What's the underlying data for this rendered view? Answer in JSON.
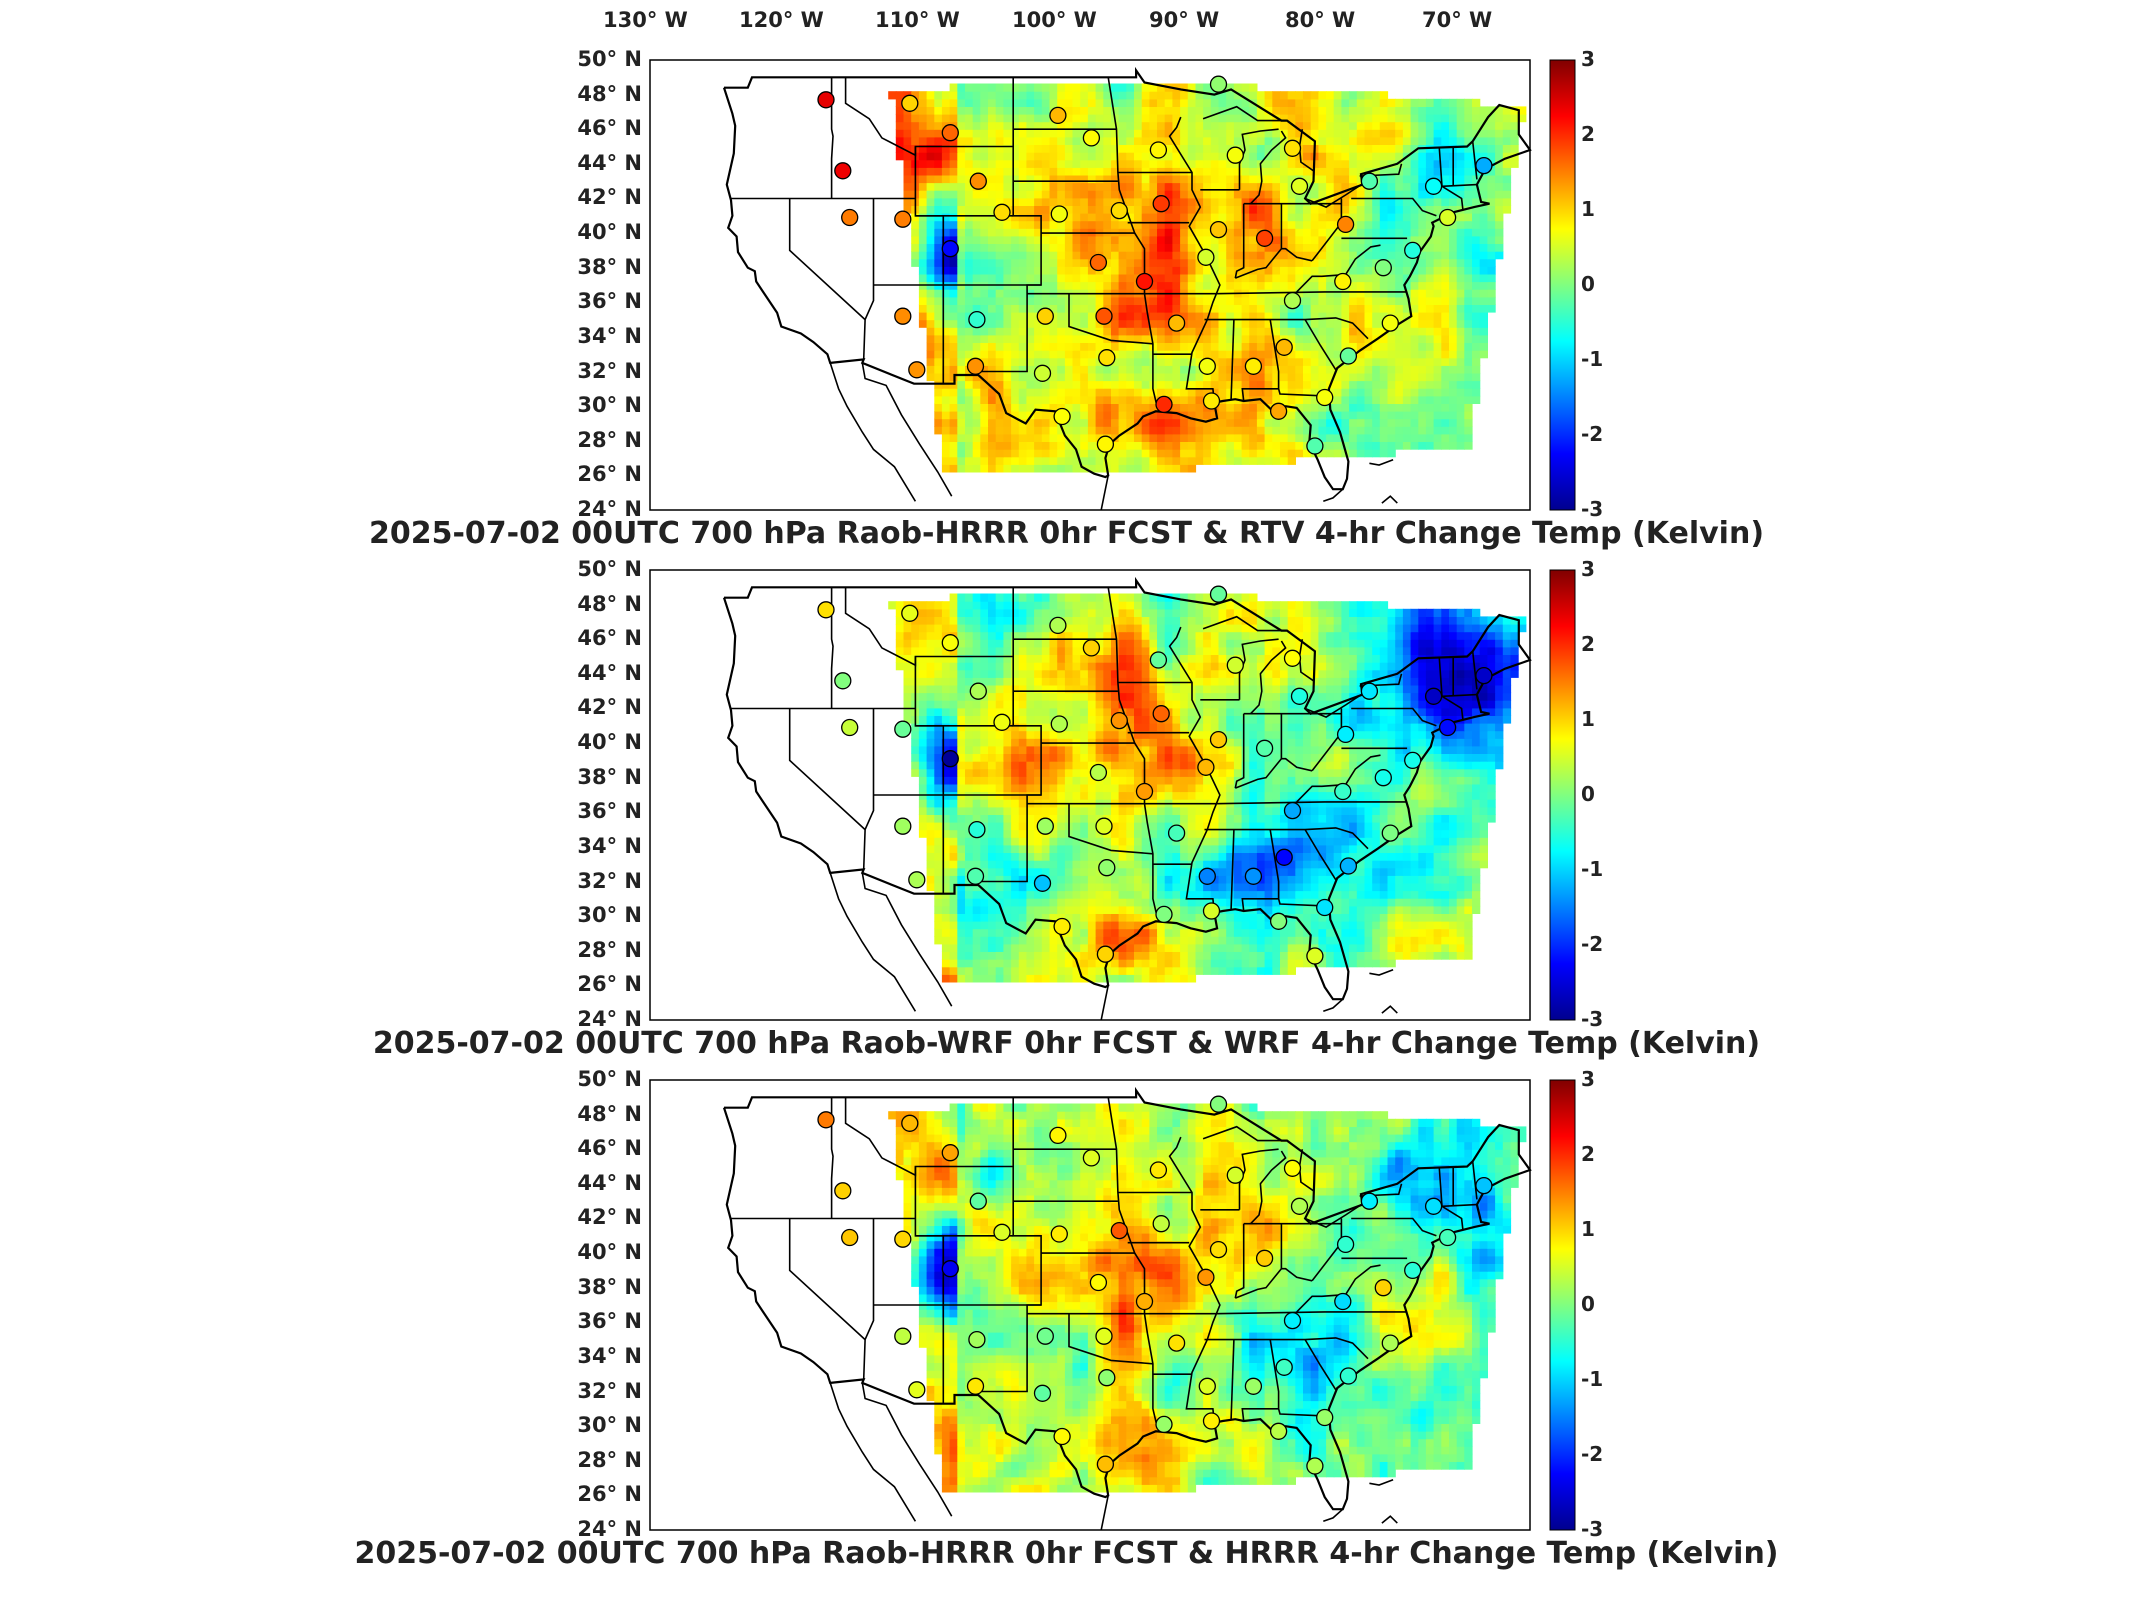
{
  "figure": {
    "lon_labels": [
      "130° W",
      "120° W",
      "110° W",
      "100° W",
      "90° W",
      "80° W",
      "70° W"
    ],
    "lat_labels": [
      "50° N",
      "48° N",
      "46° N",
      "44° N",
      "42° N",
      "40° N",
      "38° N",
      "36° N",
      "34° N",
      "32° N",
      "30° N",
      "28° N",
      "26° N",
      "24° N"
    ],
    "colorbar_ticks": [
      "3",
      "2",
      "1",
      "0",
      "-1",
      "-2",
      "-3"
    ],
    "colors": {
      "scale": [
        "#00008f",
        "#0000ff",
        "#0080ff",
        "#00ffff",
        "#80ff80",
        "#ffff00",
        "#ff8000",
        "#ff0000",
        "#800000"
      ],
      "outline": "#000000"
    }
  },
  "panels": [
    {
      "title": "2025-07-02 00UTC 700 hPa Raob-HRRR 0hr FCST & RTV 4-hr Change Temp (Kelvin)"
    },
    {
      "title": "2025-07-02 00UTC 700 hPa Raob-WRF 0hr FCST & WRF 4-hr Change Temp (Kelvin)"
    },
    {
      "title": "2025-07-02 00UTC 700 hPa Raob-HRRR 0hr FCST & HRRR 4-hr Change Temp (Kelvin)"
    }
  ],
  "chart_data": {
    "type": "heatmap",
    "variable": "700 hPa temperature",
    "units": "Kelvin",
    "color_range": [
      -3,
      3
    ],
    "lon_range": [
      -130,
      -67
    ],
    "lat_range": [
      24,
      50
    ],
    "raob_stations": [
      {
        "lon": -117.4,
        "lat": 47.7
      },
      {
        "lon": -111.4,
        "lat": 47.5
      },
      {
        "lon": -108.5,
        "lat": 45.8
      },
      {
        "lon": -106.5,
        "lat": 43.0
      },
      {
        "lon": -104.8,
        "lat": 41.2
      },
      {
        "lon": -100.8,
        "lat": 46.8
      },
      {
        "lon": -98.4,
        "lat": 45.5
      },
      {
        "lon": -93.6,
        "lat": 44.8
      },
      {
        "lon": -89.3,
        "lat": 48.6
      },
      {
        "lon": -88.1,
        "lat": 44.5
      },
      {
        "lon": -84.0,
        "lat": 44.9
      },
      {
        "lon": -83.5,
        "lat": 42.7
      },
      {
        "lon": -100.7,
        "lat": 41.1
      },
      {
        "lon": -96.4,
        "lat": 41.3
      },
      {
        "lon": -93.4,
        "lat": 41.7
      },
      {
        "lon": -89.3,
        "lat": 40.2
      },
      {
        "lon": -86.0,
        "lat": 39.7
      },
      {
        "lon": -80.2,
        "lat": 40.5
      },
      {
        "lon": -78.5,
        "lat": 43.0
      },
      {
        "lon": -73.9,
        "lat": 42.7
      },
      {
        "lon": -70.3,
        "lat": 43.9
      },
      {
        "lon": -72.9,
        "lat": 40.9
      },
      {
        "lon": -75.4,
        "lat": 39.0
      },
      {
        "lon": -77.5,
        "lat": 38.0
      },
      {
        "lon": -80.4,
        "lat": 37.2
      },
      {
        "lon": -84.0,
        "lat": 36.1
      },
      {
        "lon": -77.0,
        "lat": 34.8
      },
      {
        "lon": -80.0,
        "lat": 32.9
      },
      {
        "lon": -84.6,
        "lat": 33.4
      },
      {
        "lon": -86.8,
        "lat": 32.3
      },
      {
        "lon": -90.1,
        "lat": 32.3
      },
      {
        "lon": -92.3,
        "lat": 34.8
      },
      {
        "lon": -97.5,
        "lat": 35.2
      },
      {
        "lon": -101.7,
        "lat": 35.2
      },
      {
        "lon": -97.3,
        "lat": 32.8
      },
      {
        "lon": -101.9,
        "lat": 31.9
      },
      {
        "lon": -106.7,
        "lat": 32.3
      },
      {
        "lon": -110.9,
        "lat": 32.1
      },
      {
        "lon": -111.9,
        "lat": 35.2
      },
      {
        "lon": -106.6,
        "lat": 35.0
      },
      {
        "lon": -108.5,
        "lat": 39.1
      },
      {
        "lon": -111.9,
        "lat": 40.8
      },
      {
        "lon": -116.2,
        "lat": 43.6
      },
      {
        "lon": -115.7,
        "lat": 40.9
      },
      {
        "lon": -97.9,
        "lat": 38.3
      },
      {
        "lon": -94.6,
        "lat": 37.2
      },
      {
        "lon": -90.2,
        "lat": 38.6
      },
      {
        "lon": -93.2,
        "lat": 30.1
      },
      {
        "lon": -89.8,
        "lat": 30.3
      },
      {
        "lon": -97.4,
        "lat": 27.8
      },
      {
        "lon": -100.5,
        "lat": 29.4
      },
      {
        "lon": -82.4,
        "lat": 27.7
      },
      {
        "lon": -81.7,
        "lat": 30.5
      },
      {
        "lon": -85.0,
        "lat": 29.7
      }
    ]
  }
}
